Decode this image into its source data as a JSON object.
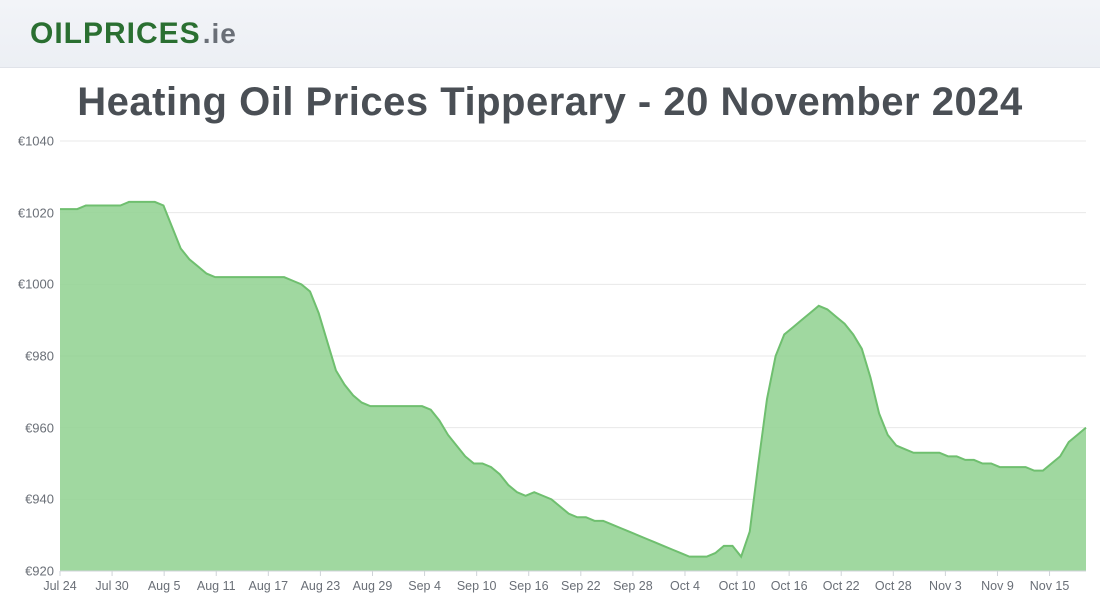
{
  "brand": {
    "part1": "OIL",
    "part2": "PRICES",
    "part3": ".ie"
  },
  "title": "Heating Oil Prices Tipperary - 20 November 2024",
  "chart": {
    "type": "area",
    "background_color": "#ffffff",
    "grid_color": "#e8e8e8",
    "area_fill": "#8fd18f",
    "area_fill_opacity": 0.85,
    "line_color": "#6fbf6f",
    "line_width": 2,
    "axis_font_color": "#6a6f77",
    "axis_font_size": 13,
    "title_font_color": "#4a4f55",
    "title_font_size": 40,
    "ylim": [
      920,
      1040
    ],
    "ytick_step": 20,
    "yticks": [
      "€920",
      "€940",
      "€960",
      "€980",
      "€1000",
      "€1020",
      "€1040"
    ],
    "xticks": [
      "Jul 24",
      "Jul 30",
      "Aug 5",
      "Aug 11",
      "Aug 17",
      "Aug 23",
      "Aug 29",
      "Sep 4",
      "Sep 10",
      "Sep 16",
      "Sep 22",
      "Sep 28",
      "Oct 4",
      "Oct 10",
      "Oct 16",
      "Oct 22",
      "Oct 28",
      "Nov 3",
      "Nov 9",
      "Nov 15"
    ],
    "n_points": 120,
    "values": [
      1021,
      1021,
      1021,
      1022,
      1022,
      1022,
      1022,
      1022,
      1023,
      1023,
      1023,
      1023,
      1022,
      1016,
      1010,
      1007,
      1005,
      1003,
      1002,
      1002,
      1002,
      1002,
      1002,
      1002,
      1002,
      1002,
      1002,
      1001,
      1000,
      998,
      992,
      984,
      976,
      972,
      969,
      967,
      966,
      966,
      966,
      966,
      966,
      966,
      966,
      965,
      962,
      958,
      955,
      952,
      950,
      950,
      949,
      947,
      944,
      942,
      941,
      942,
      941,
      940,
      938,
      936,
      935,
      935,
      934,
      934,
      933,
      932,
      931,
      930,
      929,
      928,
      927,
      926,
      925,
      924,
      924,
      924,
      925,
      927,
      927,
      924,
      931,
      950,
      968,
      980,
      986,
      988,
      990,
      992,
      994,
      993,
      991,
      989,
      986,
      982,
      974,
      964,
      958,
      955,
      954,
      953,
      953,
      953,
      953,
      952,
      952,
      951,
      951,
      950,
      950,
      949,
      949,
      949,
      949,
      948,
      948,
      950,
      952,
      956,
      958,
      960
    ]
  }
}
